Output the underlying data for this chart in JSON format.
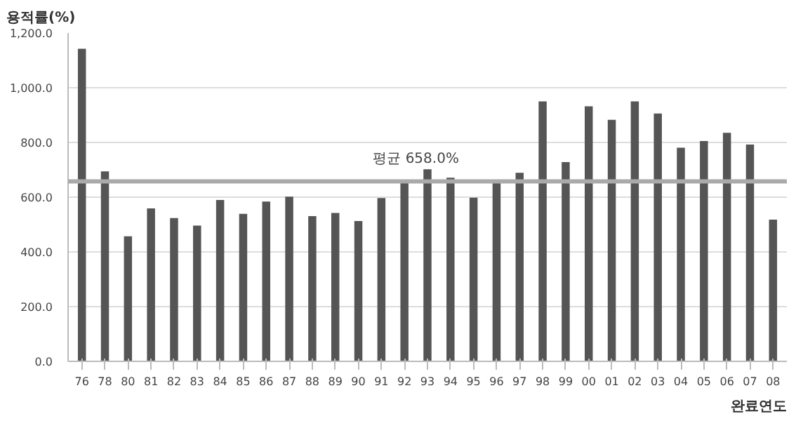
{
  "chart_data": {
    "type": "bar",
    "ylabel": "용적률(%)",
    "xlabel": "완료연도",
    "categories": [
      "76",
      "78",
      "80",
      "81",
      "82",
      "83",
      "84",
      "85",
      "86",
      "87",
      "88",
      "89",
      "90",
      "91",
      "92",
      "93",
      "94",
      "95",
      "96",
      "97",
      "98",
      "99",
      "00",
      "01",
      "02",
      "03",
      "04",
      "05",
      "06",
      "07",
      "08"
    ],
    "values": [
      1142,
      694,
      457,
      559,
      524,
      496,
      590,
      539,
      584,
      602,
      531,
      542,
      513,
      597,
      653,
      702,
      671,
      598,
      653,
      689,
      950,
      728,
      932,
      883,
      950,
      906,
      781,
      805,
      835,
      792,
      518
    ],
    "color": "#555555",
    "ylim": [
      0,
      1200
    ],
    "yticks": [
      {
        "value": 0,
        "label": "0.0"
      },
      {
        "value": 200,
        "label": "200.0"
      },
      {
        "value": 400,
        "label": "400.0"
      },
      {
        "value": 600,
        "label": "600.0"
      },
      {
        "value": 800,
        "label": "800.0"
      },
      {
        "value": 1000,
        "label": "1,000.0"
      },
      {
        "value": 1200,
        "label": "1,200.0"
      }
    ],
    "grid": "y",
    "ref_lines": [
      {
        "axis": "y",
        "value": 658,
        "label": "평균 658.0%",
        "color": "#aaaaaa"
      }
    ]
  }
}
